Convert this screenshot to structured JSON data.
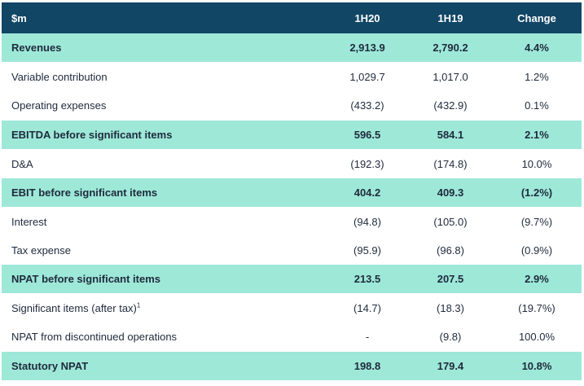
{
  "header": {
    "label": "$m",
    "col1": "1H20",
    "col2": "1H19",
    "col3": "Change"
  },
  "rows": [
    {
      "label": "Revenues",
      "v1": "2,913.9",
      "v2": "2,790.2",
      "chg": "4.4%",
      "highlight": true
    },
    {
      "label": "Variable contribution",
      "v1": "1,029.7",
      "v2": "1,017.0",
      "chg": "1.2%",
      "highlight": false
    },
    {
      "label": "Operating expenses",
      "v1": "(433.2)",
      "v2": "(432.9)",
      "chg": "0.1%",
      "highlight": false
    },
    {
      "label": "EBITDA before significant items",
      "v1": "596.5",
      "v2": "584.1",
      "chg": "2.1%",
      "highlight": true
    },
    {
      "label": "D&A",
      "v1": "(192.3)",
      "v2": "(174.8)",
      "chg": "10.0%",
      "highlight": false
    },
    {
      "label": "EBIT before significant items",
      "v1": "404.2",
      "v2": "409.3",
      "chg": "(1.2%)",
      "highlight": true
    },
    {
      "label": "Interest",
      "v1": "(94.8)",
      "v2": "(105.0)",
      "chg": "(9.7%)",
      "highlight": false
    },
    {
      "label": "Tax expense",
      "v1": "(95.9)",
      "v2": "(96.8)",
      "chg": "(0.9%)",
      "highlight": false
    },
    {
      "label": "NPAT before significant items",
      "v1": "213.5",
      "v2": "207.5",
      "chg": "2.9%",
      "highlight": true
    },
    {
      "label": "Significant items (after tax)",
      "footnote": "1",
      "v1": "(14.7)",
      "v2": "(18.3)",
      "chg": "(19.7%)",
      "highlight": false
    },
    {
      "label": "NPAT from discontinued operations",
      "v1": "-",
      "v2": "(9.8)",
      "chg": "100.0%",
      "highlight": false
    },
    {
      "label": "Statutory NPAT",
      "v1": "198.8",
      "v2": "179.4",
      "chg": "10.8%",
      "highlight": true
    }
  ]
}
